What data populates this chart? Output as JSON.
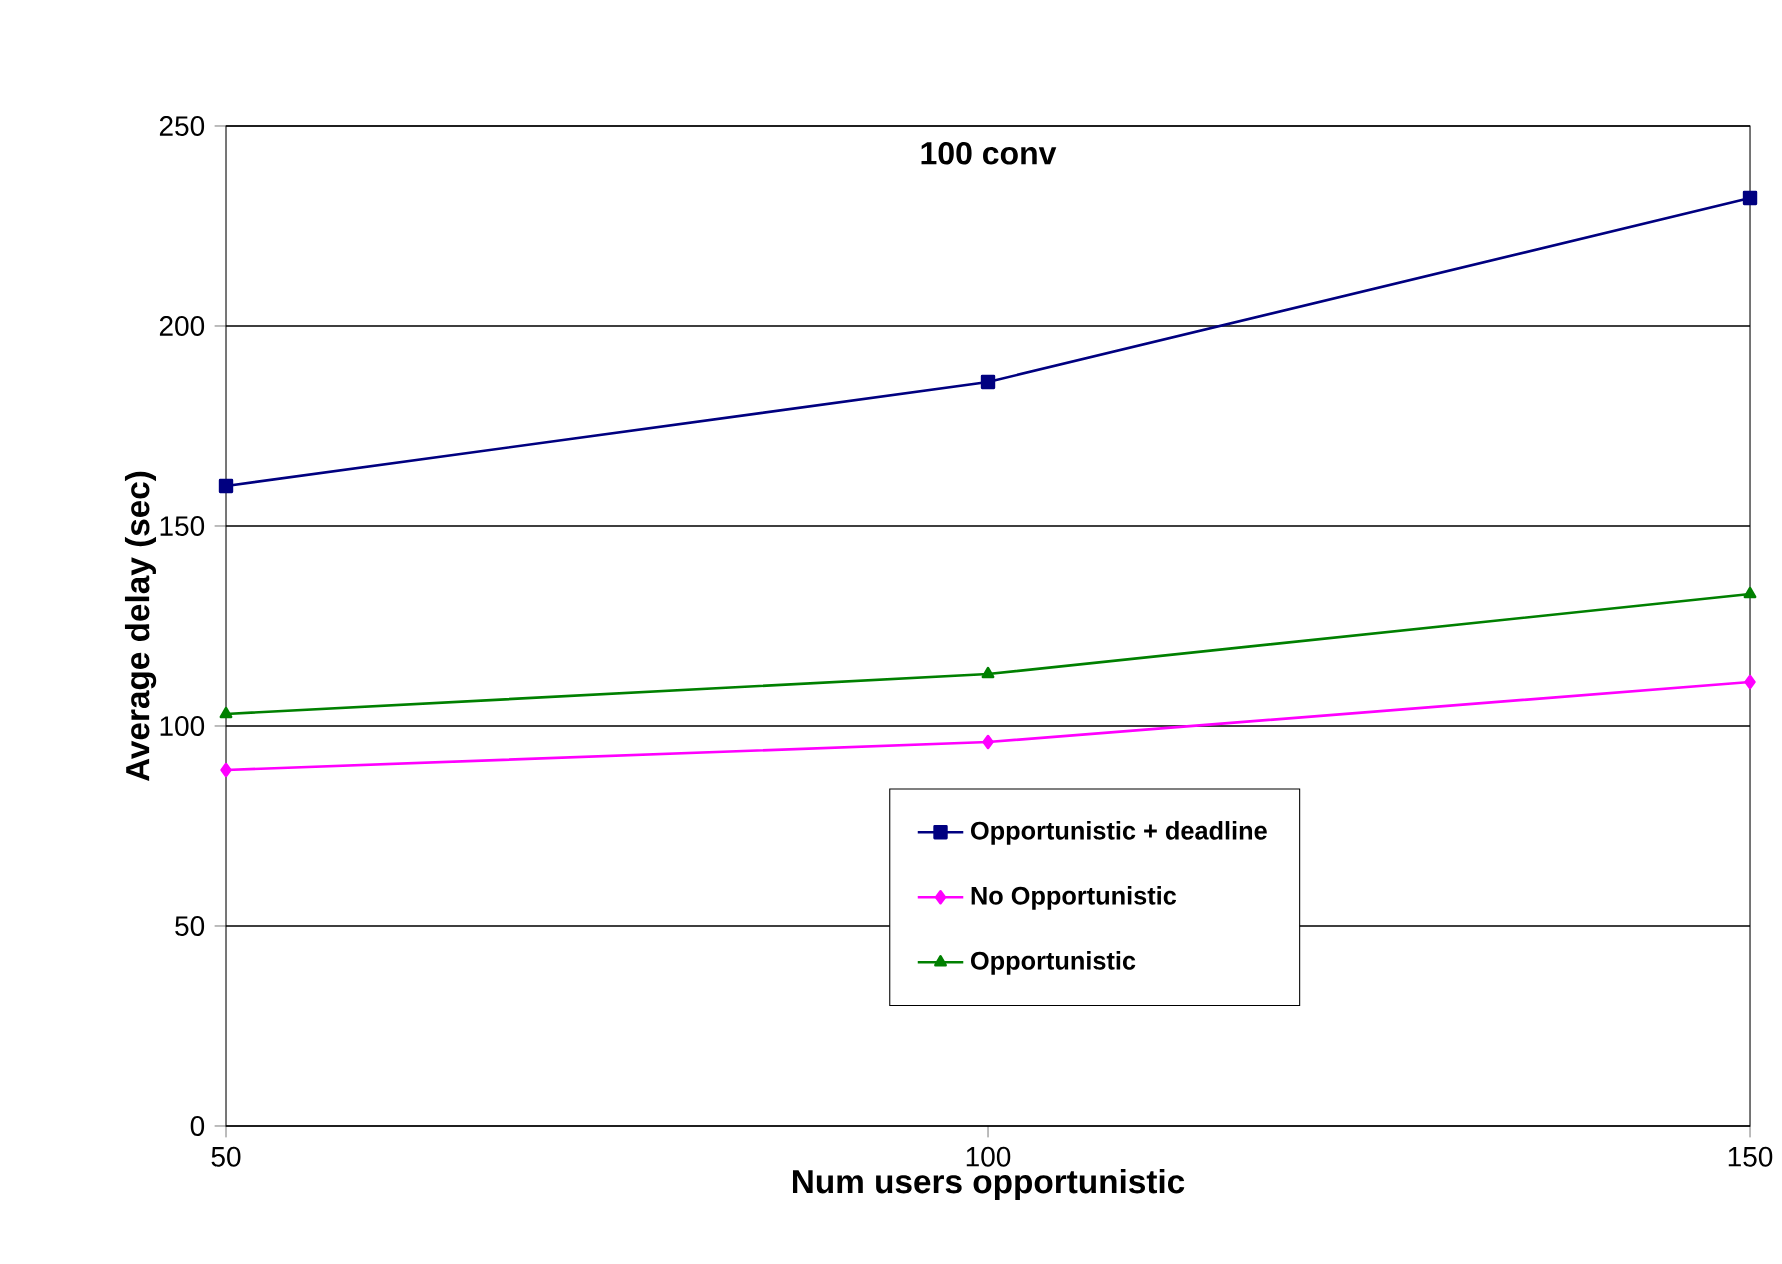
{
  "chart_data": {
    "type": "line",
    "title": "100 conv",
    "xlabel": "Num users opportunistic",
    "ylabel": "Average delay (sec)",
    "x": [
      50,
      100,
      150
    ],
    "series": [
      {
        "name": "Opportunistic + deadline",
        "color": "#000080",
        "marker": "square",
        "values": [
          160,
          186,
          232
        ]
      },
      {
        "name": "No Opportunistic",
        "color": "#ff00ff",
        "marker": "diamond",
        "values": [
          89,
          96,
          111
        ]
      },
      {
        "name": "Opportunistic",
        "color": "#008000",
        "marker": "triangle",
        "values": [
          103,
          113,
          133
        ]
      }
    ],
    "xlim": [
      50,
      150
    ],
    "xticks": [
      50,
      100,
      150
    ],
    "ylim": [
      0,
      250
    ],
    "yticks": [
      0,
      50,
      100,
      150,
      200,
      250
    ],
    "grid": "y",
    "legend": "bottom",
    "line_style": "solid"
  }
}
